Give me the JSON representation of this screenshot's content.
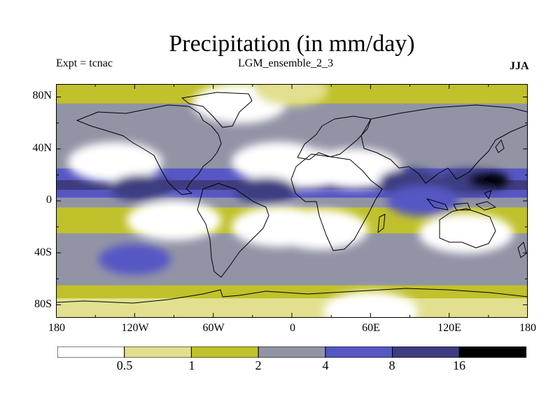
{
  "title": "Precipitation (in mm/day)",
  "experiment": "Expt = tcnac",
  "ensemble": "LGM_ensemble_2_3",
  "season": "JJA",
  "chart_data": {
    "type": "heatmap",
    "title": "Precipitation (in mm/day)",
    "units": "mm/day",
    "projection": "equirectangular",
    "lon_range": [
      -180,
      180
    ],
    "lat_range": [
      -90,
      90
    ],
    "y_ticks": [
      "80N",
      "40N",
      "0",
      "40S",
      "80S"
    ],
    "x_ticks": [
      "180",
      "120W",
      "60W",
      "0",
      "60E",
      "120E",
      "180"
    ],
    "levels": [
      "0.5",
      "1",
      "2",
      "4",
      "8",
      "16"
    ],
    "colors": [
      "#ffffff",
      "#e2e08f",
      "#c0c12b",
      "#9294a6",
      "#5757c4",
      "#3e3c81",
      "#000000"
    ],
    "zonal_bands": [
      {
        "lat": 90,
        "level": 2
      },
      {
        "lat": 80,
        "level": 2
      },
      {
        "lat": 70,
        "level": 3
      },
      {
        "lat": 60,
        "level": 3
      },
      {
        "lat": 50,
        "level": 3
      },
      {
        "lat": 40,
        "level": 3
      },
      {
        "lat": 30,
        "level": 3
      },
      {
        "lat": 20,
        "level": 4
      },
      {
        "lat": 12,
        "level": 5
      },
      {
        "lat": 5,
        "level": 4
      },
      {
        "lat": 0,
        "level": 3
      },
      {
        "lat": -10,
        "level": 2
      },
      {
        "lat": -20,
        "level": 2
      },
      {
        "lat": -30,
        "level": 3
      },
      {
        "lat": -40,
        "level": 3
      },
      {
        "lat": -50,
        "level": 3
      },
      {
        "lat": -60,
        "level": 3
      },
      {
        "lat": -70,
        "level": 2
      },
      {
        "lat": -80,
        "level": 1
      },
      {
        "lat": -90,
        "level": 1
      }
    ],
    "regions": [
      {
        "name": "Sahara",
        "lon": 10,
        "lat": 25,
        "level": 0
      },
      {
        "name": "Arabia",
        "lon": 48,
        "lat": 25,
        "level": 0
      },
      {
        "name": "Greenland",
        "lon": -40,
        "lat": 75,
        "level": 0
      },
      {
        "name": "Arctic",
        "lon": 0,
        "lat": 85,
        "level": 1
      },
      {
        "name": "East Atlantic dry zone",
        "lon": -10,
        "lat": 30,
        "level": 0
      },
      {
        "name": "NE Pacific dry zone",
        "lon": -135,
        "lat": 30,
        "level": 0
      },
      {
        "name": "SE Pacific dry zone",
        "lon": -90,
        "lat": -15,
        "level": 0
      },
      {
        "name": "South Atlantic dry zone",
        "lon": -10,
        "lat": -20,
        "level": 0
      },
      {
        "name": "Southern Africa",
        "lon": 22,
        "lat": -22,
        "level": 0
      },
      {
        "name": "Australia",
        "lon": 133,
        "lat": -25,
        "level": 0
      },
      {
        "name": "Antarctica",
        "lon": 60,
        "lat": -85,
        "level": 0
      },
      {
        "name": "East Pacific ITCZ",
        "lon": -115,
        "lat": 10,
        "level": 5
      },
      {
        "name": "Atlantic ITCZ",
        "lon": -20,
        "lat": 8,
        "level": 5
      },
      {
        "name": "Bay of Bengal",
        "lon": 90,
        "lat": 15,
        "level": 5
      },
      {
        "name": "West Pacific monsoon",
        "lon": 135,
        "lat": 15,
        "level": 5
      },
      {
        "name": "West Pacific maximum",
        "lon": 150,
        "lat": 16,
        "level": 6
      },
      {
        "name": "Indian Ocean / Maritime Continent",
        "lon": 100,
        "lat": 0,
        "level": 4
      },
      {
        "name": "Southern Ocean storm track",
        "lon": -120,
        "lat": -45,
        "level": 4
      }
    ]
  }
}
